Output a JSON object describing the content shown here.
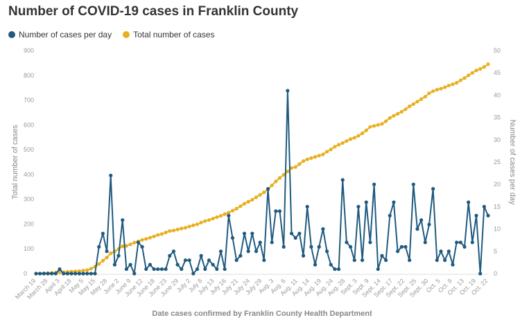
{
  "chart_data": {
    "type": "line",
    "title": "Number of COVID-19 cases in Franklin County",
    "xlabel": "Date cases confirmed by Franklin County Health Department",
    "ylabel_left": "Total number of cases",
    "ylabel_right": "Number of cases per day",
    "ylim_left": [
      0,
      900
    ],
    "ylim_right": [
      0,
      50
    ],
    "yticks_left": [
      "900",
      "800",
      "700",
      "600",
      "500",
      "400",
      "300",
      "200",
      "100",
      "0"
    ],
    "yticks_right": [
      "50",
      "45",
      "40",
      "35",
      "30",
      "25",
      "20",
      "15",
      "10",
      "5",
      "0"
    ],
    "xticks": [
      "March 19",
      "March 28",
      "April 3",
      "April 18",
      "May 5",
      "May 15",
      "May 28",
      "June 2",
      "June 9",
      "June 12",
      "June 18",
      "June 23",
      "June 29",
      "July 2",
      "July 8",
      "July 13",
      "July 16",
      "July 21",
      "July 24",
      "July 29",
      "Aug. 3",
      "Aug. 6",
      "Aug. 11",
      "Aug. 14",
      "Aug. 19",
      "Aug. 24",
      "Aug. 28",
      "Sept. 3",
      "Sept. 9",
      "Sept. 14",
      "Sept. 17",
      "Sept. 22",
      "Sept. 25",
      "Sept. 30",
      "Oct. 5",
      "Oct. 8",
      "Oct. 13",
      "Oct. 19",
      "Oct. 22"
    ],
    "grid": false,
    "legend_position": "top-left",
    "series": [
      {
        "name": "Number of cases per day",
        "axis": "right",
        "color": "#1f5a7f",
        "values": [
          0,
          0,
          0,
          0,
          0,
          0,
          1,
          0,
          0,
          0,
          0,
          0,
          0,
          0,
          0,
          0,
          6,
          9,
          5,
          22,
          2,
          4,
          12,
          1,
          2,
          0,
          7,
          6,
          1,
          2,
          1,
          1,
          1,
          1,
          4,
          5,
          2,
          1,
          3,
          3,
          0,
          1,
          4,
          1,
          3,
          2,
          1,
          5,
          1,
          13,
          8,
          3,
          4,
          9,
          5,
          9,
          5,
          7,
          3,
          19,
          7,
          14,
          14,
          6,
          41,
          9,
          8,
          9,
          4,
          15,
          6,
          2,
          6,
          10,
          5,
          2,
          1,
          1,
          21,
          7,
          6,
          3,
          15,
          3,
          16,
          7,
          20,
          1,
          4,
          3,
          13,
          16,
          5,
          6,
          6,
          3,
          20,
          10,
          12,
          7,
          11,
          19,
          3,
          5,
          3,
          5,
          2,
          7,
          7,
          6,
          16,
          7,
          13,
          0,
          15,
          13
        ]
      },
      {
        "name": "Total number of cases",
        "axis": "left",
        "color": "#e8b021",
        "values": [
          0,
          0,
          1,
          2,
          3,
          4,
          5,
          6,
          7,
          8,
          9,
          10,
          12,
          14,
          20,
          28,
          39,
          52,
          65,
          82,
          90,
          99,
          110,
          112,
          118,
          125,
          130,
          136,
          140,
          145,
          150,
          156,
          160,
          166,
          172,
          174,
          178,
          182,
          185,
          190,
          195,
          199,
          206,
          212,
          216,
          222,
          228,
          233,
          240,
          246,
          254,
          262,
          272,
          282,
          290,
          298,
          308,
          318,
          328,
          340,
          356,
          372,
          386,
          399,
          412,
          426,
          430,
          442,
          454,
          461,
          466,
          471,
          476,
          481,
          492,
          501,
          512,
          520,
          527,
          535,
          543,
          548,
          556,
          566,
          578,
          592,
          596,
          600,
          604,
          615,
          628,
          637,
          645,
          653,
          663,
          675,
          684,
          694,
          704,
          714,
          728,
          736,
          742,
          746,
          752,
          759,
          764,
          770,
          780,
          789,
          800,
          810,
          820,
          826,
          834,
          845
        ]
      }
    ]
  }
}
